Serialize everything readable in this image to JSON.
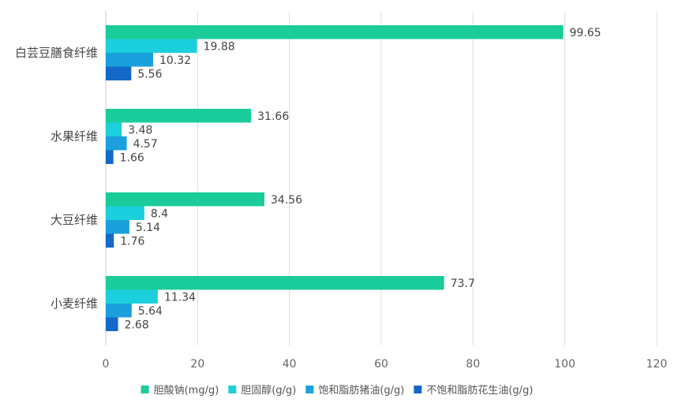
{
  "colors": {
    "gridline": "#dddddd",
    "axis": "#cccccc",
    "series": [
      "#1acc99",
      "#1ccfdc",
      "#1aa0dc",
      "#1468c8"
    ]
  },
  "chart_data": {
    "type": "bar",
    "orientation": "horizontal",
    "categories": [
      "白芸豆膳食纤维",
      "水果纤维",
      "大豆纤维",
      "小麦纤维"
    ],
    "series": [
      {
        "name": "胆酸钠(mg/g)",
        "values": [
          99.65,
          31.66,
          34.56,
          73.7
        ]
      },
      {
        "name": "胆固醇(g/g)",
        "values": [
          19.88,
          3.48,
          8.4,
          11.34
        ]
      },
      {
        "name": "饱和脂肪猪油(g/g)",
        "values": [
          10.32,
          4.57,
          5.14,
          5.64
        ]
      },
      {
        "name": "不饱和脂肪花生油(g/g)",
        "values": [
          5.56,
          1.66,
          1.76,
          2.68
        ]
      }
    ],
    "value_labels": [
      [
        "99.65",
        "31.66",
        "34.56",
        "73.7"
      ],
      [
        "19.88",
        "3.48",
        "8.4",
        "11.34"
      ],
      [
        "10.32",
        "4.57",
        "5.14",
        "5.64"
      ],
      [
        "5.56",
        "1.66",
        "1.76",
        "2.68"
      ]
    ],
    "xlim": [
      0,
      120
    ],
    "xticks": [
      "0",
      "20",
      "40",
      "60",
      "80",
      "100",
      "120"
    ],
    "grid": "vertical",
    "legend_position": "bottom-center",
    "title": "",
    "xlabel": "",
    "ylabel": ""
  }
}
